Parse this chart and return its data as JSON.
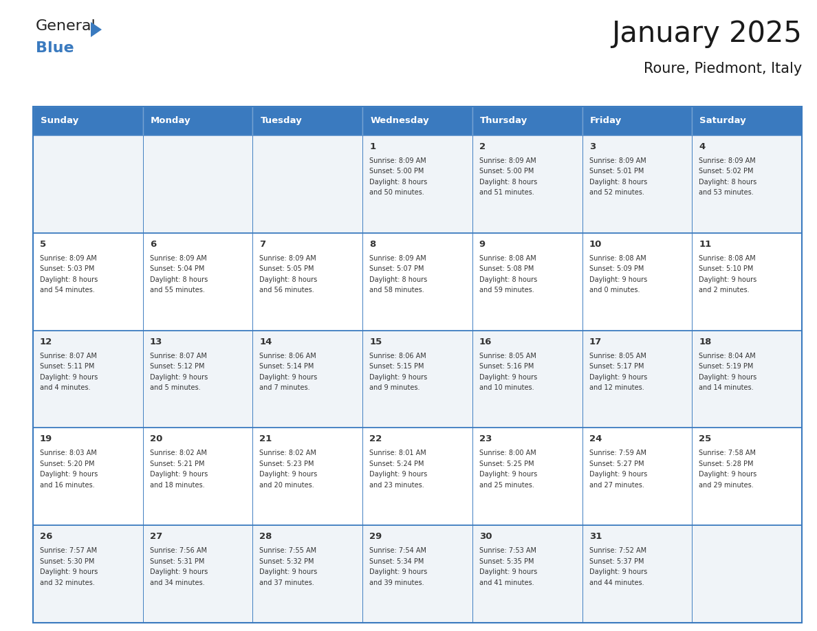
{
  "title": "January 2025",
  "subtitle": "Roure, Piedmont, Italy",
  "header_color": "#3a7abf",
  "header_text_color": "#ffffff",
  "cell_bg_even": "#f0f4f8",
  "cell_bg_odd": "#ffffff",
  "border_color": "#3a7abf",
  "text_color": "#333333",
  "day_names": [
    "Sunday",
    "Monday",
    "Tuesday",
    "Wednesday",
    "Thursday",
    "Friday",
    "Saturday"
  ],
  "days": [
    {
      "day": 1,
      "col": 3,
      "row": 0,
      "sunrise": "8:09 AM",
      "sunset": "5:00 PM",
      "daylight_h": "8 hours",
      "daylight_m": "and 50 minutes."
    },
    {
      "day": 2,
      "col": 4,
      "row": 0,
      "sunrise": "8:09 AM",
      "sunset": "5:00 PM",
      "daylight_h": "8 hours",
      "daylight_m": "and 51 minutes."
    },
    {
      "day": 3,
      "col": 5,
      "row": 0,
      "sunrise": "8:09 AM",
      "sunset": "5:01 PM",
      "daylight_h": "8 hours",
      "daylight_m": "and 52 minutes."
    },
    {
      "day": 4,
      "col": 6,
      "row": 0,
      "sunrise": "8:09 AM",
      "sunset": "5:02 PM",
      "daylight_h": "8 hours",
      "daylight_m": "and 53 minutes."
    },
    {
      "day": 5,
      "col": 0,
      "row": 1,
      "sunrise": "8:09 AM",
      "sunset": "5:03 PM",
      "daylight_h": "8 hours",
      "daylight_m": "and 54 minutes."
    },
    {
      "day": 6,
      "col": 1,
      "row": 1,
      "sunrise": "8:09 AM",
      "sunset": "5:04 PM",
      "daylight_h": "8 hours",
      "daylight_m": "and 55 minutes."
    },
    {
      "day": 7,
      "col": 2,
      "row": 1,
      "sunrise": "8:09 AM",
      "sunset": "5:05 PM",
      "daylight_h": "8 hours",
      "daylight_m": "and 56 minutes."
    },
    {
      "day": 8,
      "col": 3,
      "row": 1,
      "sunrise": "8:09 AM",
      "sunset": "5:07 PM",
      "daylight_h": "8 hours",
      "daylight_m": "and 58 minutes."
    },
    {
      "day": 9,
      "col": 4,
      "row": 1,
      "sunrise": "8:08 AM",
      "sunset": "5:08 PM",
      "daylight_h": "8 hours",
      "daylight_m": "and 59 minutes."
    },
    {
      "day": 10,
      "col": 5,
      "row": 1,
      "sunrise": "8:08 AM",
      "sunset": "5:09 PM",
      "daylight_h": "9 hours",
      "daylight_m": "and 0 minutes."
    },
    {
      "day": 11,
      "col": 6,
      "row": 1,
      "sunrise": "8:08 AM",
      "sunset": "5:10 PM",
      "daylight_h": "9 hours",
      "daylight_m": "and 2 minutes."
    },
    {
      "day": 12,
      "col": 0,
      "row": 2,
      "sunrise": "8:07 AM",
      "sunset": "5:11 PM",
      "daylight_h": "9 hours",
      "daylight_m": "and 4 minutes."
    },
    {
      "day": 13,
      "col": 1,
      "row": 2,
      "sunrise": "8:07 AM",
      "sunset": "5:12 PM",
      "daylight_h": "9 hours",
      "daylight_m": "and 5 minutes."
    },
    {
      "day": 14,
      "col": 2,
      "row": 2,
      "sunrise": "8:06 AM",
      "sunset": "5:14 PM",
      "daylight_h": "9 hours",
      "daylight_m": "and 7 minutes."
    },
    {
      "day": 15,
      "col": 3,
      "row": 2,
      "sunrise": "8:06 AM",
      "sunset": "5:15 PM",
      "daylight_h": "9 hours",
      "daylight_m": "and 9 minutes."
    },
    {
      "day": 16,
      "col": 4,
      "row": 2,
      "sunrise": "8:05 AM",
      "sunset": "5:16 PM",
      "daylight_h": "9 hours",
      "daylight_m": "and 10 minutes."
    },
    {
      "day": 17,
      "col": 5,
      "row": 2,
      "sunrise": "8:05 AM",
      "sunset": "5:17 PM",
      "daylight_h": "9 hours",
      "daylight_m": "and 12 minutes."
    },
    {
      "day": 18,
      "col": 6,
      "row": 2,
      "sunrise": "8:04 AM",
      "sunset": "5:19 PM",
      "daylight_h": "9 hours",
      "daylight_m": "and 14 minutes."
    },
    {
      "day": 19,
      "col": 0,
      "row": 3,
      "sunrise": "8:03 AM",
      "sunset": "5:20 PM",
      "daylight_h": "9 hours",
      "daylight_m": "and 16 minutes."
    },
    {
      "day": 20,
      "col": 1,
      "row": 3,
      "sunrise": "8:02 AM",
      "sunset": "5:21 PM",
      "daylight_h": "9 hours",
      "daylight_m": "and 18 minutes."
    },
    {
      "day": 21,
      "col": 2,
      "row": 3,
      "sunrise": "8:02 AM",
      "sunset": "5:23 PM",
      "daylight_h": "9 hours",
      "daylight_m": "and 20 minutes."
    },
    {
      "day": 22,
      "col": 3,
      "row": 3,
      "sunrise": "8:01 AM",
      "sunset": "5:24 PM",
      "daylight_h": "9 hours",
      "daylight_m": "and 23 minutes."
    },
    {
      "day": 23,
      "col": 4,
      "row": 3,
      "sunrise": "8:00 AM",
      "sunset": "5:25 PM",
      "daylight_h": "9 hours",
      "daylight_m": "and 25 minutes."
    },
    {
      "day": 24,
      "col": 5,
      "row": 3,
      "sunrise": "7:59 AM",
      "sunset": "5:27 PM",
      "daylight_h": "9 hours",
      "daylight_m": "and 27 minutes."
    },
    {
      "day": 25,
      "col": 6,
      "row": 3,
      "sunrise": "7:58 AM",
      "sunset": "5:28 PM",
      "daylight_h": "9 hours",
      "daylight_m": "and 29 minutes."
    },
    {
      "day": 26,
      "col": 0,
      "row": 4,
      "sunrise": "7:57 AM",
      "sunset": "5:30 PM",
      "daylight_h": "9 hours",
      "daylight_m": "and 32 minutes."
    },
    {
      "day": 27,
      "col": 1,
      "row": 4,
      "sunrise": "7:56 AM",
      "sunset": "5:31 PM",
      "daylight_h": "9 hours",
      "daylight_m": "and 34 minutes."
    },
    {
      "day": 28,
      "col": 2,
      "row": 4,
      "sunrise": "7:55 AM",
      "sunset": "5:32 PM",
      "daylight_h": "9 hours",
      "daylight_m": "and 37 minutes."
    },
    {
      "day": 29,
      "col": 3,
      "row": 4,
      "sunrise": "7:54 AM",
      "sunset": "5:34 PM",
      "daylight_h": "9 hours",
      "daylight_m": "and 39 minutes."
    },
    {
      "day": 30,
      "col": 4,
      "row": 4,
      "sunrise": "7:53 AM",
      "sunset": "5:35 PM",
      "daylight_h": "9 hours",
      "daylight_m": "and 41 minutes."
    },
    {
      "day": 31,
      "col": 5,
      "row": 4,
      "sunrise": "7:52 AM",
      "sunset": "5:37 PM",
      "daylight_h": "9 hours",
      "daylight_m": "and 44 minutes."
    }
  ],
  "logo_text_general": "General",
  "logo_text_blue": "Blue",
  "logo_color_general": "#222222",
  "logo_color_blue": "#3a7abf",
  "logo_triangle_color": "#3a7abf",
  "figwidth": 11.88,
  "figheight": 9.18,
  "dpi": 100
}
